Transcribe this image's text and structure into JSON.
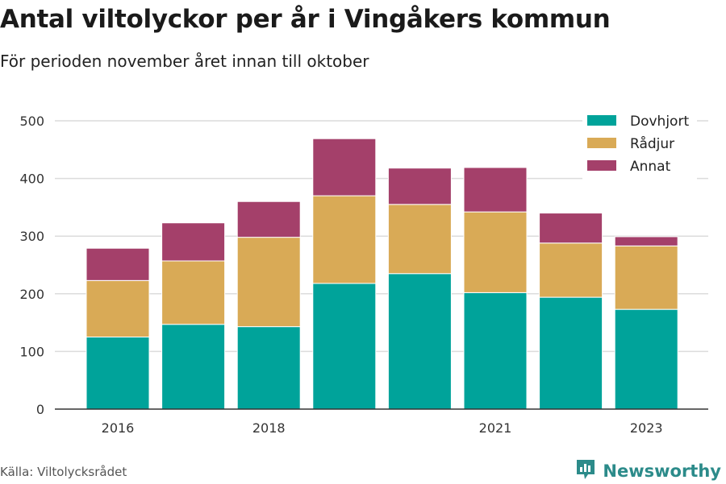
{
  "title": "Antal viltolyckor per år i Vingåkers kommun",
  "subtitle": "För perioden november året innan till oktober",
  "source": "Källa: Viltolycksrådet",
  "brand": {
    "name": "Newsworthy",
    "icon": "newsworthy-logo-icon",
    "color": "#2c8b8a"
  },
  "chart_data": {
    "type": "bar",
    "stacked": true,
    "x": [
      2016,
      2017,
      2018,
      2019,
      2020,
      2021,
      2022,
      2023
    ],
    "x_tick_labels": [
      "2016",
      "2018",
      "2021",
      "2023"
    ],
    "x_tick_values": [
      2016,
      2018,
      2021,
      2023
    ],
    "series": [
      {
        "name": "Dovhjort",
        "color": "#00a39a",
        "values": [
          125,
          147,
          143,
          218,
          235,
          202,
          194,
          173
        ]
      },
      {
        "name": "Rådjur",
        "color": "#d9aa56",
        "values": [
          98,
          110,
          155,
          152,
          120,
          140,
          94,
          110
        ]
      },
      {
        "name": "Annat",
        "color": "#a4406a",
        "values": [
          56,
          66,
          62,
          99,
          63,
          77,
          52,
          16
        ]
      }
    ],
    "y_ticks": [
      0,
      100,
      200,
      300,
      400,
      500
    ],
    "ylim": [
      0,
      500
    ],
    "grid": "horizontal",
    "legend_position": "top-right"
  }
}
